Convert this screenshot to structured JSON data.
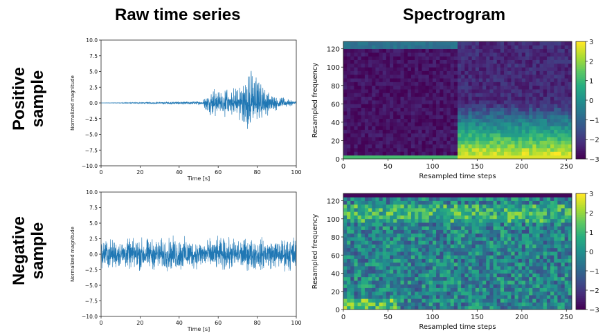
{
  "headers": {
    "left": "Raw time series",
    "right": "Spectrogram"
  },
  "rows": [
    {
      "label_line1": "Positive",
      "label_line2": "sample"
    },
    {
      "label_line1": "Negative",
      "label_line2": "sample"
    }
  ],
  "colors": {
    "series_line": "#1f77b4",
    "viridis": [
      "#440154",
      "#472c7a",
      "#3b518b",
      "#2c718e",
      "#21908d",
      "#27ad81",
      "#5cc863",
      "#aadc32",
      "#fde725"
    ]
  },
  "chart_data": [
    {
      "type": "line",
      "id": "positive-time-series",
      "xlabel": "Time [s]",
      "ylabel": "Normalized magnitude",
      "xlim": [
        0,
        100
      ],
      "ylim": [
        -10,
        10
      ],
      "xticks": [
        0,
        20,
        40,
        60,
        80,
        100
      ],
      "yticks": [
        -10.0,
        -7.5,
        -5.0,
        -2.5,
        0.0,
        2.5,
        5.0,
        7.5,
        10.0
      ],
      "ytick_labels": [
        "−10.0",
        "−7.5",
        "−5.0",
        "−2.5",
        "0.0",
        "2.5",
        "5.0",
        "7.5",
        "10.0"
      ],
      "x": [
        0,
        52,
        54,
        56,
        58,
        60,
        62,
        64,
        66,
        68,
        70,
        72,
        74,
        76,
        78,
        80,
        82,
        84,
        86,
        88,
        90,
        92,
        94,
        96,
        98,
        100
      ],
      "envelope": [
        0,
        0.3,
        1.5,
        2.0,
        2.5,
        2.0,
        1.8,
        3.0,
        2.2,
        2.5,
        3.0,
        3.5,
        4.0,
        6.0,
        5.5,
        4.0,
        3.5,
        2.5,
        2.0,
        1.5,
        1.2,
        1.0,
        0.8,
        0.6,
        0.5,
        0.3
      ]
    },
    {
      "type": "heatmap",
      "id": "positive-spectrogram",
      "xlabel": "Resampled time steps",
      "ylabel": "Resampled frequency",
      "xlim": [
        0,
        256
      ],
      "ylim": [
        0,
        128
      ],
      "xticks": [
        0,
        50,
        100,
        150,
        200,
        250
      ],
      "yticks": [
        0,
        20,
        40,
        60,
        80,
        100,
        120
      ],
      "colorbar_range": [
        -3,
        3
      ],
      "colorbar_ticks": [
        -3,
        -2,
        -1,
        0,
        1,
        2,
        3
      ],
      "colorbar_tick_labels": [
        "−3",
        "−2",
        "−1",
        "0",
        "1",
        "2",
        "3"
      ],
      "event_onset_step": 130,
      "grid": "off"
    },
    {
      "type": "line",
      "id": "negative-time-series",
      "xlabel": "Time [s]",
      "ylabel": "Normalized magnitude",
      "xlim": [
        0,
        100
      ],
      "ylim": [
        -10,
        10
      ],
      "xticks": [
        0,
        20,
        40,
        60,
        80,
        100
      ],
      "yticks": [
        -10.0,
        -7.5,
        -5.0,
        -2.5,
        0.0,
        2.5,
        5.0,
        7.5,
        10.0
      ],
      "ytick_labels": [
        "−10.0",
        "−7.5",
        "−5.0",
        "−2.5",
        "0.0",
        "2.5",
        "5.0",
        "7.5",
        "10.0"
      ],
      "x": [
        0,
        10,
        20,
        30,
        40,
        50,
        60,
        70,
        80,
        90,
        100
      ],
      "envelope": [
        3.0,
        2.5,
        3.0,
        2.8,
        3.2,
        2.5,
        3.0,
        2.8,
        3.0,
        2.6,
        3.5
      ]
    },
    {
      "type": "heatmap",
      "id": "negative-spectrogram",
      "xlabel": "Resampled time steps",
      "ylabel": "Resampled frequency",
      "xlim": [
        0,
        256
      ],
      "ylim": [
        0,
        128
      ],
      "xticks": [
        0,
        50,
        100,
        150,
        200,
        250
      ],
      "yticks": [
        0,
        20,
        40,
        60,
        80,
        100,
        120
      ],
      "colorbar_range": [
        -3,
        3
      ],
      "colorbar_ticks": [
        -3,
        -2,
        -1,
        0,
        1,
        2,
        3
      ],
      "colorbar_tick_labels": [
        "−3",
        "−2",
        "−1",
        "0",
        "1",
        "2",
        "3"
      ],
      "grid": "off"
    }
  ]
}
